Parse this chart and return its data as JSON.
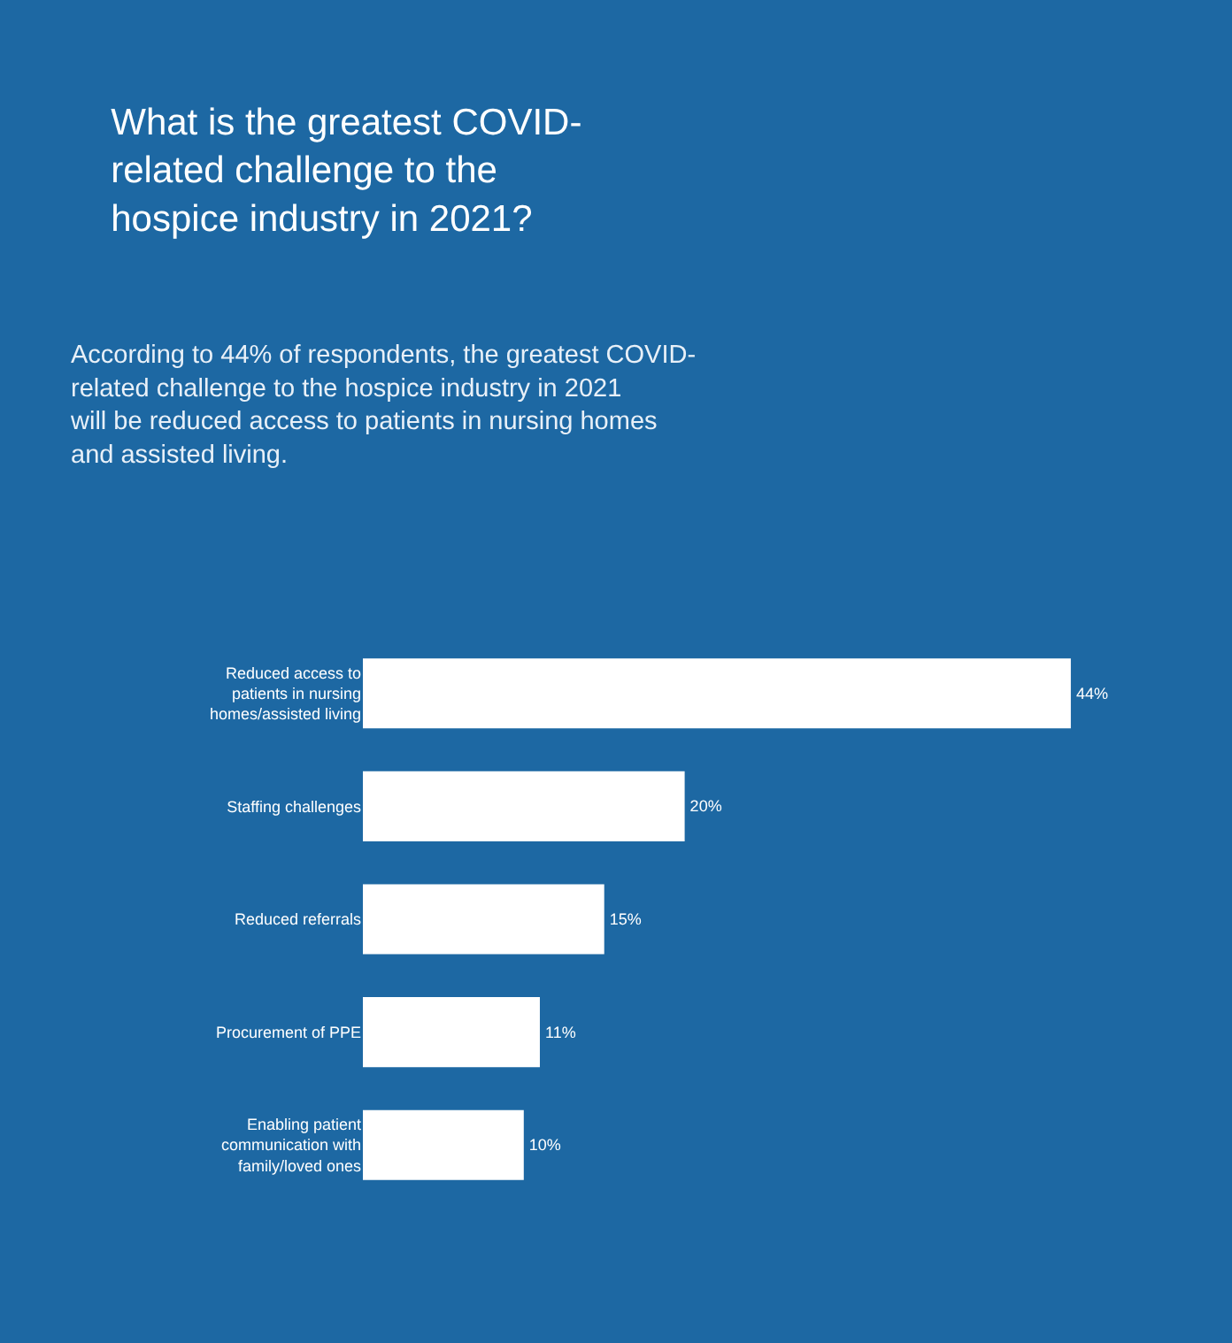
{
  "chart_data": {
    "type": "bar",
    "orientation": "horizontal",
    "title": "What is the greatest COVID-related challenge to the hospice industry in 2021?",
    "subtitle": "According to 44% of respondents, the greatest COVID-related challenge to the hospice industry in 2021 will be reduced access to patients in nursing homes and assisted living.",
    "categories": [
      "Reduced access to patients in nursing homes/assisted living",
      "Staffing challenges",
      "Reduced referrals",
      "Procurement of PPE",
      "Enabling patient communication with family/loved ones"
    ],
    "values": [
      44,
      20,
      15,
      11,
      10
    ],
    "value_labels": [
      "44%",
      "20%",
      "15%",
      "11%",
      "10%"
    ],
    "color": "#ffffff",
    "grid": false,
    "legend": false,
    "tick_labels": "y"
  }
}
